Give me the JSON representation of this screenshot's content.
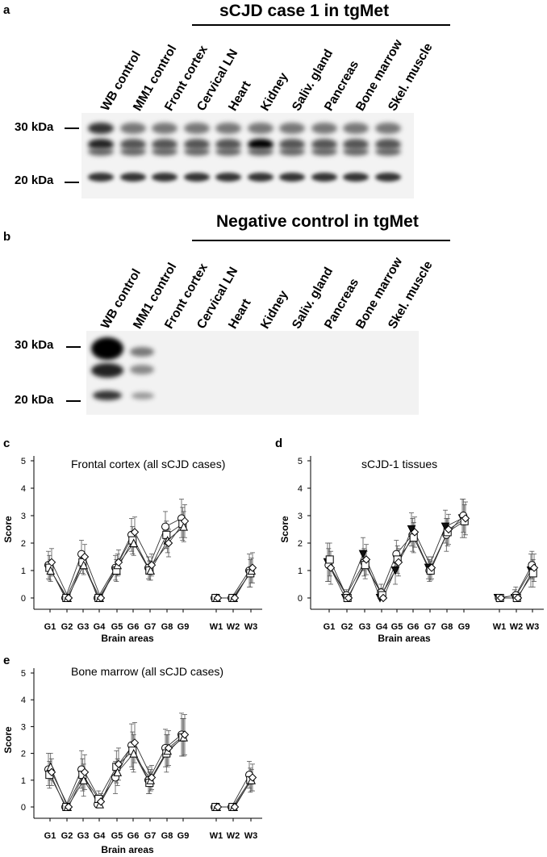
{
  "panel_a": {
    "letter": "a",
    "title": "sCJD case 1 in tgMet",
    "lanes": [
      "WB control",
      "MM1 control",
      "Front cortex",
      "Cervical LN",
      "Heart",
      "Kidney",
      "Saliv. gland",
      "Pancreas",
      "Bone marrow",
      "Skel. muscle"
    ],
    "mw_labels": [
      "30 kDa",
      "20 kDa"
    ]
  },
  "panel_b": {
    "letter": "b",
    "title": "Negative control in tgMet",
    "lanes": [
      "WB control",
      "MM1 control",
      "Front cortex",
      "Cervical LN",
      "Heart",
      "Kidney",
      "Saliv. gland",
      "Pancreas",
      "Bone marrow",
      "Skel. muscle"
    ],
    "mw_labels": [
      "30 kDa",
      "20 kDa"
    ]
  },
  "charts": [
    {
      "letter": "c",
      "title": "Frontal cortex (all sCJD cases)"
    },
    {
      "letter": "d",
      "title": "sCJD-1 tissues"
    },
    {
      "letter": "e",
      "title": "Bone marrow  (all sCJD cases)"
    }
  ],
  "chart_data": [
    {
      "type": "line",
      "title": "Frontal cortex (all sCJD cases)",
      "xlabel": "Brain areas",
      "ylabel": "Score",
      "ylim": [
        0,
        5
      ],
      "yticks": [
        0,
        1,
        2,
        3,
        4,
        5
      ],
      "categories": [
        "G1",
        "G2",
        "G3",
        "G4",
        "G5",
        "G6",
        "G7",
        "G8",
        "G9",
        "W1",
        "W2",
        "W3"
      ],
      "series": [
        {
          "marker": "circle",
          "values": [
            1.2,
            0,
            1.6,
            0,
            1.1,
            2.3,
            1.1,
            2.6,
            2.9,
            0,
            0,
            1.0
          ],
          "errors": [
            0.5,
            0.05,
            0.5,
            0.05,
            0.45,
            0.6,
            0.4,
            0.55,
            0.7,
            0.05,
            0.05,
            0.6
          ]
        },
        {
          "marker": "square",
          "values": [
            1.1,
            0,
            1.3,
            0,
            1.0,
            2.1,
            1.0,
            2.3,
            2.7,
            0,
            0,
            0.9
          ],
          "errors": [
            0.45,
            0.05,
            0.4,
            0.05,
            0.4,
            0.5,
            0.35,
            0.5,
            0.6,
            0.05,
            0.05,
            0.5
          ]
        },
        {
          "marker": "triangle",
          "values": [
            1.0,
            0,
            1.2,
            0,
            1.2,
            2.0,
            1.0,
            2.1,
            2.6,
            0,
            0,
            1.0
          ],
          "errors": [
            0.4,
            0.05,
            0.35,
            0.05,
            0.4,
            0.45,
            0.35,
            0.45,
            0.55,
            0.05,
            0.05,
            0.45
          ]
        },
        {
          "marker": "diamond",
          "values": [
            1.3,
            0,
            1.5,
            0,
            1.3,
            2.4,
            1.2,
            2.0,
            2.8,
            0,
            0,
            1.1
          ],
          "errors": [
            0.5,
            0.05,
            0.45,
            0.05,
            0.45,
            0.55,
            0.4,
            0.5,
            0.6,
            0.05,
            0.05,
            0.55
          ]
        }
      ]
    },
    {
      "type": "line",
      "title": "sCJD-1 tissues",
      "xlabel": "Brain areas",
      "ylabel": "Score",
      "ylim": [
        0,
        5
      ],
      "yticks": [
        0,
        1,
        2,
        3,
        4,
        5
      ],
      "categories": [
        "G1",
        "G2",
        "G3",
        "G4",
        "G5",
        "G6",
        "G7",
        "G8",
        "G9",
        "W1",
        "W2",
        "W3"
      ],
      "series": [
        {
          "marker": "triangle-down",
          "values": [
            1.3,
            0,
            1.6,
            0,
            1.0,
            2.5,
            1.1,
            2.6,
            2.9,
            0,
            0,
            1.0
          ],
          "errors": [
            0.7,
            0.2,
            0.6,
            0.3,
            0.5,
            0.6,
            0.4,
            0.6,
            0.7,
            0.05,
            0.3,
            0.6
          ]
        },
        {
          "marker": "circle",
          "values": [
            1.2,
            0.1,
            1.3,
            0.2,
            1.6,
            2.3,
            1.0,
            2.3,
            3.0,
            0,
            0.1,
            1.2
          ],
          "errors": [
            0.6,
            0.2,
            0.5,
            0.3,
            0.5,
            0.6,
            0.4,
            0.6,
            0.6,
            0.05,
            0.3,
            0.5
          ]
        },
        {
          "marker": "square",
          "values": [
            1.4,
            0,
            1.2,
            0.1,
            1.4,
            2.2,
            1.0,
            2.4,
            2.8,
            0,
            0,
            0.9
          ],
          "errors": [
            0.6,
            0.15,
            0.5,
            0.25,
            0.5,
            0.55,
            0.35,
            0.5,
            0.6,
            0.05,
            0.2,
            0.5
          ]
        },
        {
          "marker": "diamond",
          "values": [
            1.1,
            0,
            1.4,
            0,
            1.3,
            2.4,
            1.1,
            2.5,
            2.9,
            0,
            0,
            1.1
          ],
          "errors": [
            0.6,
            0.15,
            0.55,
            0.25,
            0.5,
            0.55,
            0.4,
            0.55,
            0.6,
            0.05,
            0.2,
            0.5
          ]
        }
      ]
    },
    {
      "type": "line",
      "title": "Bone marrow  (all sCJD cases)",
      "xlabel": "Brain areas",
      "ylabel": "Score",
      "ylim": [
        0,
        5
      ],
      "yticks": [
        0,
        1,
        2,
        3,
        4,
        5
      ],
      "categories": [
        "G1",
        "G2",
        "G3",
        "G4",
        "G5",
        "G6",
        "G7",
        "G8",
        "G9",
        "W1",
        "W2",
        "W3"
      ],
      "series": [
        {
          "marker": "circle",
          "values": [
            1.4,
            0,
            1.4,
            0.1,
            1.1,
            2.3,
            1.0,
            2.2,
            2.7,
            0,
            0,
            1.2
          ],
          "errors": [
            0.6,
            0.05,
            0.7,
            0.3,
            0.6,
            0.8,
            0.5,
            0.7,
            0.8,
            0.05,
            0.05,
            0.5
          ]
        },
        {
          "marker": "square",
          "values": [
            1.2,
            0,
            1.2,
            0.3,
            1.5,
            2.1,
            0.9,
            2.0,
            2.6,
            0,
            0,
            1.0
          ],
          "errors": [
            0.5,
            0.05,
            0.6,
            0.3,
            0.6,
            0.7,
            0.4,
            0.7,
            0.7,
            0.05,
            0.05,
            0.45
          ]
        },
        {
          "marker": "triangle",
          "values": [
            1.5,
            0,
            1.0,
            0.1,
            1.3,
            2.0,
            1.0,
            2.1,
            2.6,
            0,
            0,
            1.0
          ],
          "errors": [
            0.5,
            0.05,
            0.6,
            0.25,
            0.5,
            0.7,
            0.4,
            0.6,
            0.7,
            0.05,
            0.05,
            0.4
          ]
        },
        {
          "marker": "diamond",
          "values": [
            1.3,
            0,
            1.3,
            0.2,
            1.6,
            2.4,
            1.1,
            2.2,
            2.7,
            0,
            0,
            1.1
          ],
          "errors": [
            0.5,
            0.05,
            0.65,
            0.3,
            0.6,
            0.75,
            0.45,
            0.65,
            0.75,
            0.05,
            0.05,
            0.5
          ]
        }
      ]
    }
  ]
}
